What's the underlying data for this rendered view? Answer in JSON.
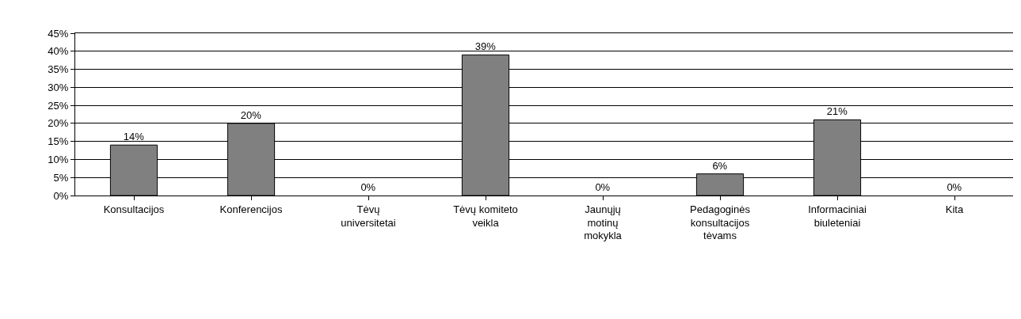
{
  "chart_data": {
    "type": "bar",
    "categories": [
      "Konsultacijos",
      "Konferencijos",
      "Tėvų universitetai",
      "Tėvų komiteto veikla",
      "Jaunųjų motinų mokykla",
      "Pedagoginės konsultacijos tėvams",
      "Informaciniai biuleteniai",
      "Kita"
    ],
    "values": [
      14,
      20,
      0,
      39,
      0,
      6,
      21,
      0
    ],
    "value_labels": [
      "14%",
      "20%",
      "0%",
      "39%",
      "0%",
      "6%",
      "21%",
      "0%"
    ],
    "color": "#808080",
    "ylim": [
      0,
      45
    ],
    "yticks": [
      {
        "value": 0,
        "label": "0%"
      },
      {
        "value": 5,
        "label": "5%"
      },
      {
        "value": 10,
        "label": "10%"
      },
      {
        "value": 15,
        "label": "15%"
      },
      {
        "value": 20,
        "label": "20%"
      },
      {
        "value": 25,
        "label": "25%"
      },
      {
        "value": 30,
        "label": "30%"
      },
      {
        "value": 35,
        "label": "35%"
      },
      {
        "value": 40,
        "label": "40%"
      },
      {
        "value": 45,
        "label": "45%"
      }
    ],
    "grid": "y"
  }
}
